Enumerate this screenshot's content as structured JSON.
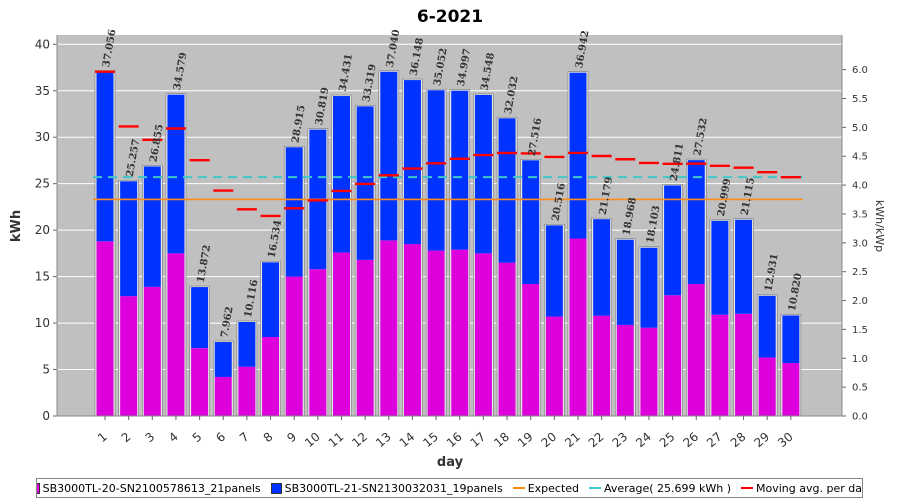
{
  "chart_data": {
    "type": "bar",
    "title": "6-2021",
    "xlabel": "day",
    "ylabel": "kWh",
    "y2label": "kWh/kWp",
    "ylim": [
      0,
      41
    ],
    "y2lim": [
      0,
      6.6
    ],
    "yticks": [
      "0",
      "5",
      "10",
      "15",
      "20",
      "25",
      "30",
      "35",
      "40"
    ],
    "y2ticks": [
      "0.0",
      "0.5",
      "1.0",
      "1.5",
      "2.0",
      "2.5",
      "3.0",
      "3.5",
      "4.0",
      "4.5",
      "5.0",
      "5.5",
      "6.0"
    ],
    "categories": [
      "1",
      "2",
      "3",
      "4",
      "5",
      "6",
      "7",
      "8",
      "9",
      "10",
      "11",
      "12",
      "13",
      "14",
      "15",
      "16",
      "17",
      "18",
      "19",
      "20",
      "21",
      "22",
      "23",
      "24",
      "25",
      "26",
      "27",
      "28",
      "29",
      "30"
    ],
    "series": [
      {
        "name": "SB3000TL-20-SN2100578613_21panels",
        "color": "#dd00dd",
        "values": [
          18.8,
          12.9,
          13.9,
          17.5,
          7.3,
          4.2,
          5.3,
          8.5,
          15.0,
          15.8,
          17.6,
          16.8,
          18.9,
          18.5,
          17.8,
          17.9,
          17.5,
          16.5,
          14.2,
          10.7,
          19.1,
          10.8,
          9.8,
          9.5,
          13.0,
          14.2,
          10.9,
          11.0,
          6.3,
          5.7
        ]
      },
      {
        "name": "SB3000TL-21-SN2130032031_19panels",
        "color": "#0033ff",
        "values": [
          18.256,
          12.357,
          12.955,
          17.079,
          6.572,
          3.762,
          4.816,
          8.034,
          13.915,
          15.019,
          16.831,
          16.519,
          18.14,
          17.648,
          17.252,
          17.097,
          17.048,
          15.532,
          13.316,
          9.816,
          17.842,
          10.379,
          9.168,
          8.603,
          11.811,
          13.332,
          10.099,
          10.115,
          6.631,
          5.12
        ]
      }
    ],
    "totals": [
      "37.056",
      "25.257",
      "26.855",
      "34.579",
      "13.872",
      "7.962",
      "10.116",
      "16.534",
      "28.915",
      "30.819",
      "34.431",
      "33.319",
      "37.040",
      "36.148",
      "35.052",
      "34.997",
      "34.548",
      "32.032",
      "27.516",
      "20.516",
      "36.942",
      "21.179",
      "18.968",
      "18.103",
      "24.811",
      "27.532",
      "20.999",
      "21.115",
      "12.931",
      "10.820"
    ],
    "expected": {
      "name": "Expected",
      "value": 23.3,
      "color": "#ff8c1a"
    },
    "average": {
      "name": "Average( 25.699 kWh )",
      "value": 25.699,
      "color": "#40c8c8"
    },
    "moving_avg": {
      "name": "Moving avg. per day.",
      "color": "#ff0000",
      "values": [
        37.056,
        31.157,
        29.723,
        30.937,
        27.524,
        24.265,
        22.243,
        21.529,
        22.351,
        23.198,
        24.218,
        24.974,
        25.902,
        26.63,
        27.192,
        27.68,
        28.083,
        28.302,
        28.26,
        27.873,
        28.305,
        27.98,
        27.629,
        27.233,
        27.136,
        27.151,
        26.924,
        26.717,
        26.242,
        25.699
      ]
    },
    "legend_position": "bottom"
  }
}
